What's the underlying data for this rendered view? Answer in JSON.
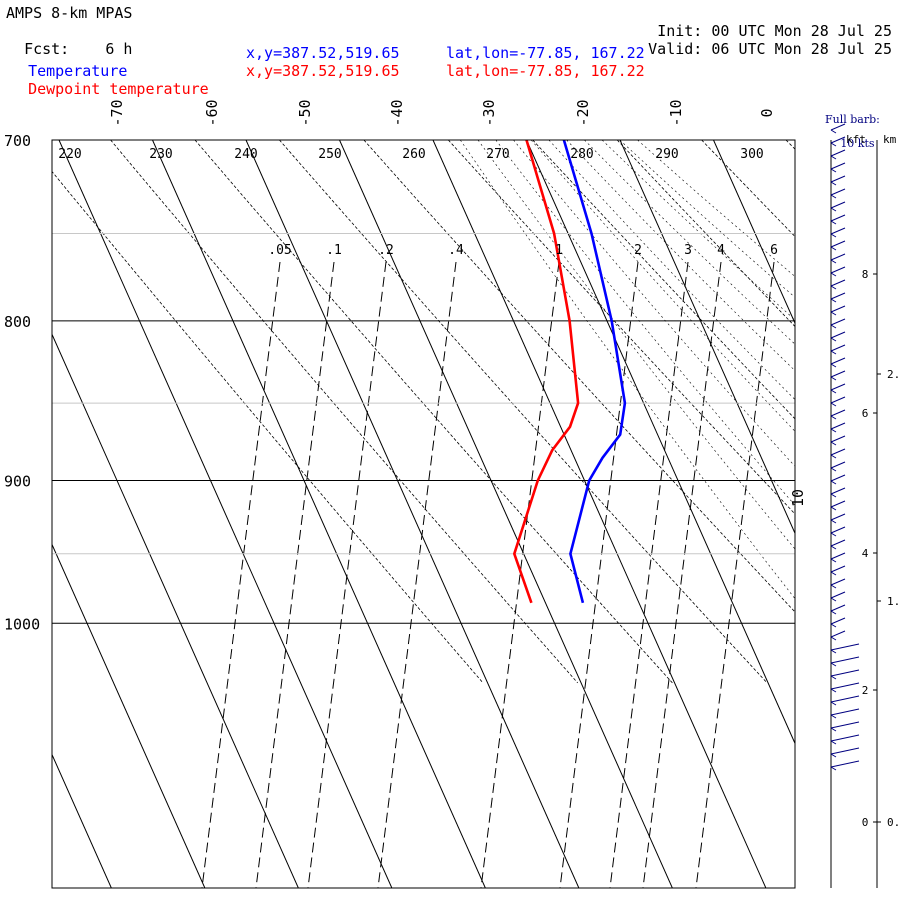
{
  "header": {
    "model": "AMPS 8-km MPAS",
    "fcst_label": "Fcst:",
    "fcst_value": "6 h",
    "init_label": "Init:",
    "init_value": "00 UTC Mon 28 Jul 25",
    "valid_label": "Valid:",
    "valid_value": "06 UTC Mon 28 Jul 25",
    "temp_label": "Temperature",
    "temp_xy": "x,y=387.52,519.65",
    "temp_latlon": "lat,lon=-77.85, 167.22",
    "dew_label": "Dewpoint temperature",
    "dew_xy": "x,y=387.52,519.65",
    "dew_latlon": "lat,lon=-77.85, 167.22",
    "barb_note_1": "Full barb:",
    "barb_note_2": "10 kts",
    "kft_label": "kft",
    "km_label": "km"
  },
  "colors": {
    "temperature": "#0000ff",
    "dewpoint": "#ff0000",
    "header_blue": "#0000ff",
    "header_red": "#ff0000"
  },
  "chart_data": {
    "type": "line",
    "subtype": "skew-T log-P sounding",
    "pressure_ticks": [
      "700",
      "800",
      "900",
      "1000"
    ],
    "pressure_values": [
      700,
      800,
      900,
      1000
    ],
    "temperature_ticks": [
      "-70",
      "-60",
      "-50",
      "-40",
      "-30",
      "-20",
      "-10",
      "0",
      "10"
    ],
    "theta_labels": [
      "220",
      "230",
      "240",
      "250",
      "260",
      "270",
      "280",
      "290",
      "300"
    ],
    "mixing_ratio_labels": [
      ".05",
      ".1",
      ".2",
      ".4",
      "1",
      "2",
      "3",
      "4",
      "6"
    ],
    "series": [
      {
        "name": "Temperature",
        "p": [
          700,
          750,
          800,
          850,
          870,
          885,
          900,
          950,
          985
        ],
        "t": [
          -26,
          -27.5,
          -29.5,
          -32,
          -34,
          -37,
          -39.5,
          -45,
          -46
        ]
      },
      {
        "name": "Dewpoint temperature",
        "p": [
          700,
          750,
          800,
          850,
          865,
          880,
          900,
          950,
          985
        ],
        "t": [
          -30,
          -31.5,
          -34,
          -37,
          -39,
          -42,
          -45,
          -51,
          -51.5
        ]
      }
    ],
    "height_axis": {
      "kft_ticks": [
        "0",
        "2",
        "4",
        "6",
        "8"
      ],
      "km_ticks": [
        "0.",
        "1.",
        "2."
      ]
    },
    "wind_barbs": "wind barbs along right edge, ~5-10 kts, pressure 700-985 hPa"
  }
}
